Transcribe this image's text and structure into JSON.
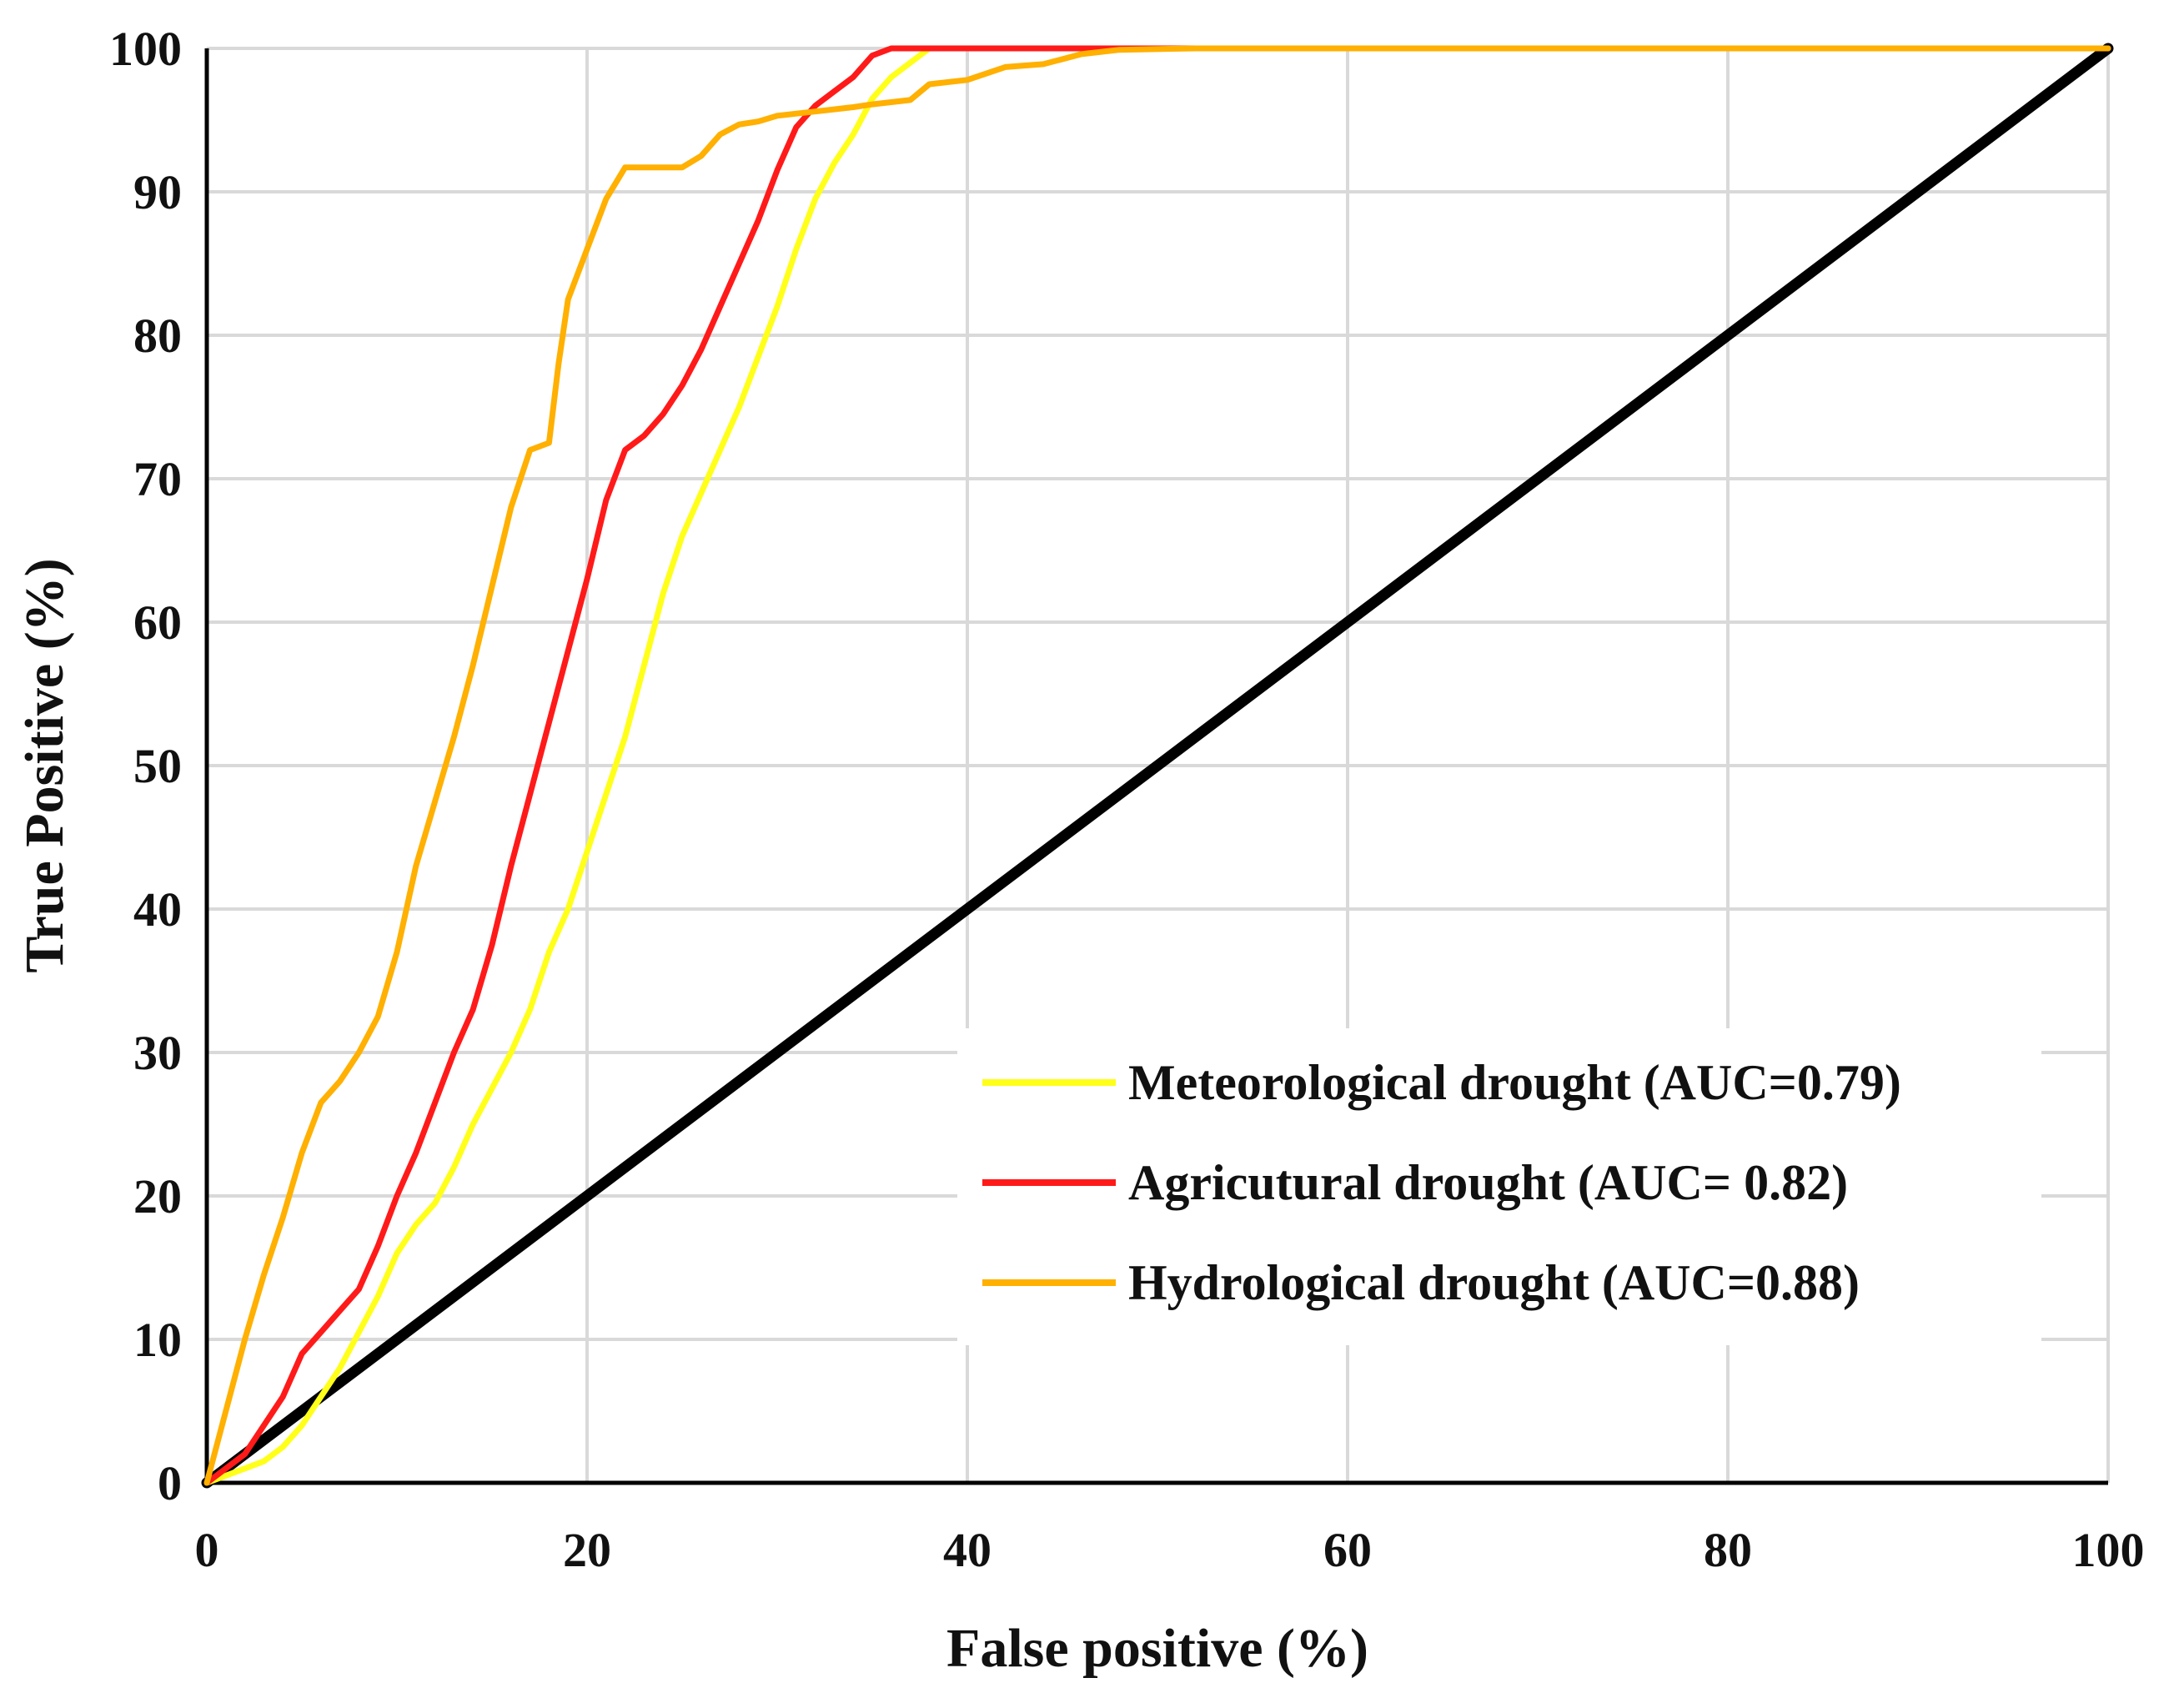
{
  "chart_data": {
    "type": "line",
    "title": "",
    "xlabel": "False positive (%)",
    "ylabel": "True Positive (%)",
    "xlim": [
      0,
      100
    ],
    "ylim": [
      0,
      100
    ],
    "x_ticks": [
      0,
      20,
      40,
      60,
      80,
      100
    ],
    "y_ticks": [
      0,
      10,
      20,
      30,
      40,
      50,
      60,
      70,
      80,
      90,
      100
    ],
    "grid": true,
    "legend_position": "bottom-right",
    "series": [
      {
        "name": "Meteorological drought (AUC=0.79)",
        "color": "#ffff1a",
        "points": [
          [
            0,
            0
          ],
          [
            2,
            1
          ],
          [
            3,
            1.5
          ],
          [
            4,
            2.5
          ],
          [
            5,
            4
          ],
          [
            6,
            6
          ],
          [
            7,
            8
          ],
          [
            8,
            10.5
          ],
          [
            9,
            13
          ],
          [
            10,
            16
          ],
          [
            11,
            18
          ],
          [
            12,
            19.5
          ],
          [
            13,
            22
          ],
          [
            14,
            25
          ],
          [
            15,
            27.5
          ],
          [
            16,
            30
          ],
          [
            17,
            33
          ],
          [
            18,
            37
          ],
          [
            19,
            40
          ],
          [
            20,
            44
          ],
          [
            21,
            48
          ],
          [
            22,
            52
          ],
          [
            23,
            57
          ],
          [
            24,
            62
          ],
          [
            25,
            66
          ],
          [
            26,
            69
          ],
          [
            27,
            72
          ],
          [
            28,
            75
          ],
          [
            29,
            78.5
          ],
          [
            30,
            82
          ],
          [
            31,
            86
          ],
          [
            32,
            89.5
          ],
          [
            33,
            92
          ],
          [
            34,
            94
          ],
          [
            35,
            96.5
          ],
          [
            36,
            98
          ],
          [
            37,
            99
          ],
          [
            38,
            100
          ],
          [
            100,
            100
          ]
        ]
      },
      {
        "name": "Agricutural drought (AUC= 0.82)",
        "color": "#ff1a1a",
        "points": [
          [
            0,
            0
          ],
          [
            2,
            2
          ],
          [
            3,
            4
          ],
          [
            4,
            6
          ],
          [
            5,
            9
          ],
          [
            6,
            10.5
          ],
          [
            7,
            12
          ],
          [
            8,
            13.5
          ],
          [
            9,
            16.5
          ],
          [
            10,
            20
          ],
          [
            11,
            23
          ],
          [
            12,
            26.5
          ],
          [
            13,
            30
          ],
          [
            14,
            33
          ],
          [
            15,
            37.5
          ],
          [
            16,
            43
          ],
          [
            17,
            48
          ],
          [
            18,
            53
          ],
          [
            19,
            58
          ],
          [
            20,
            63
          ],
          [
            21,
            68.5
          ],
          [
            22,
            72
          ],
          [
            23,
            73
          ],
          [
            24,
            74.5
          ],
          [
            25,
            76.5
          ],
          [
            26,
            79
          ],
          [
            27,
            82
          ],
          [
            28,
            85
          ],
          [
            29,
            88
          ],
          [
            30,
            91.5
          ],
          [
            31,
            94.5
          ],
          [
            32,
            96
          ],
          [
            33,
            97
          ],
          [
            34,
            98
          ],
          [
            35,
            99.5
          ],
          [
            36,
            100
          ],
          [
            100,
            100
          ]
        ]
      },
      {
        "name": "Hydrological drought (AUC=0.88)",
        "color": "#ffb000",
        "points": [
          [
            0,
            0
          ],
          [
            1,
            5
          ],
          [
            2,
            10
          ],
          [
            3,
            14.5
          ],
          [
            4,
            18.5
          ],
          [
            5,
            23
          ],
          [
            6,
            26.5
          ],
          [
            7,
            28
          ],
          [
            8,
            30
          ],
          [
            9,
            32.5
          ],
          [
            10,
            37
          ],
          [
            11,
            43
          ],
          [
            12,
            47.5
          ],
          [
            13,
            52
          ],
          [
            14,
            57
          ],
          [
            15,
            62.5
          ],
          [
            16,
            68
          ],
          [
            17,
            72
          ],
          [
            18,
            72.5
          ],
          [
            18.5,
            78
          ],
          [
            19,
            82.5
          ],
          [
            20,
            86
          ],
          [
            21,
            89.5
          ],
          [
            22,
            91.7
          ],
          [
            25,
            91.7
          ],
          [
            26,
            92.5
          ],
          [
            27,
            94
          ],
          [
            28,
            94.7
          ],
          [
            29,
            94.9
          ],
          [
            30,
            95.3
          ],
          [
            32,
            95.6
          ],
          [
            34,
            95.9
          ],
          [
            35,
            96.1
          ],
          [
            37,
            96.4
          ],
          [
            38,
            97.5
          ],
          [
            40,
            97.8
          ],
          [
            42,
            98.7
          ],
          [
            44,
            98.9
          ],
          [
            46,
            99.6
          ],
          [
            48,
            99.9
          ],
          [
            52,
            100
          ],
          [
            100,
            100
          ]
        ]
      },
      {
        "name": "Reference line",
        "color": "#000000",
        "points": [
          [
            0,
            0
          ],
          [
            100,
            100
          ]
        ]
      }
    ]
  }
}
